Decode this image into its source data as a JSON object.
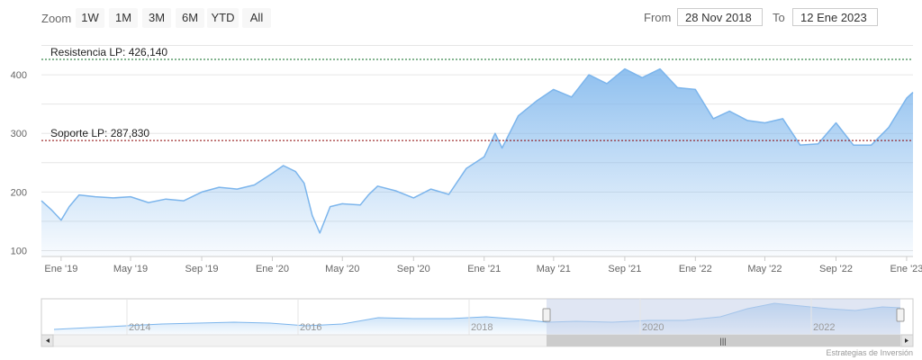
{
  "toolbar": {
    "zoom_label": "Zoom",
    "buttons": [
      "1W",
      "1M",
      "3M",
      "6M",
      "YTD",
      "All"
    ],
    "from_label": "From",
    "from_value": "28 Nov 2018",
    "to_label": "To",
    "to_value": "12 Ene 2023"
  },
  "credits": "Estrategias de Inversión",
  "colors": {
    "line": "#7cb5ec",
    "resistance": "#0a6b22",
    "support": "#8b0000",
    "navigator_mask": "#c7d2ea"
  },
  "chart_data": {
    "type": "area",
    "title": "",
    "xlabel": "",
    "ylabel": "",
    "ylim": [
      90,
      460
    ],
    "yticks": [
      100,
      200,
      300,
      400
    ],
    "xtick_labels": [
      "Ene '19",
      "May '19",
      "Sep '19",
      "Ene '20",
      "May '20",
      "Sep '20",
      "Ene '21",
      "May '21",
      "Sep '21",
      "Ene '22",
      "May '22",
      "Sep '22",
      "Ene '23"
    ],
    "grid": true,
    "series": [
      {
        "x": [
          "2018-11-28",
          "2018-12-15",
          "2019-01-01",
          "2019-01-15",
          "2019-02-01",
          "2019-03-01",
          "2019-04-01",
          "2019-05-01",
          "2019-06-01",
          "2019-07-01",
          "2019-08-01",
          "2019-09-01",
          "2019-10-01",
          "2019-11-01",
          "2019-12-01",
          "2020-01-01",
          "2020-01-20",
          "2020-02-10",
          "2020-02-25",
          "2020-03-10",
          "2020-03-23",
          "2020-04-10",
          "2020-05-01",
          "2020-06-01",
          "2020-06-15",
          "2020-07-01",
          "2020-08-01",
          "2020-09-01",
          "2020-10-01",
          "2020-11-01",
          "2020-12-01",
          "2021-01-01",
          "2021-01-20",
          "2021-02-01",
          "2021-03-01",
          "2021-04-01",
          "2021-05-01",
          "2021-06-01",
          "2021-07-01",
          "2021-08-01",
          "2021-09-01",
          "2021-10-01",
          "2021-11-01",
          "2021-12-01",
          "2022-01-01",
          "2022-02-01",
          "2022-03-01",
          "2022-04-01",
          "2022-05-01",
          "2022-06-01",
          "2022-07-01",
          "2022-08-01",
          "2022-09-01",
          "2022-10-01",
          "2022-11-01",
          "2022-12-01",
          "2023-01-01",
          "2023-01-12"
        ],
        "values": [
          185,
          170,
          152,
          175,
          195,
          192,
          190,
          192,
          182,
          188,
          185,
          200,
          208,
          205,
          212,
          232,
          245,
          235,
          215,
          160,
          130,
          175,
          180,
          178,
          195,
          210,
          202,
          190,
          205,
          196,
          240,
          260,
          300,
          275,
          330,
          355,
          375,
          362,
          400,
          385,
          410,
          395,
          410,
          378,
          375,
          325,
          338,
          322,
          318,
          325,
          280,
          282,
          318,
          280,
          280,
          310,
          360,
          370
        ]
      }
    ],
    "annotations": [
      {
        "label": "Resistencia LP: 426,140",
        "value": 426.14
      },
      {
        "label": "Soporte LP: 287,830",
        "value": 287.83
      }
    ],
    "navigator": {
      "xtick_labels": [
        "2014",
        "2016",
        "2018",
        "2020",
        "2022"
      ]
    }
  }
}
